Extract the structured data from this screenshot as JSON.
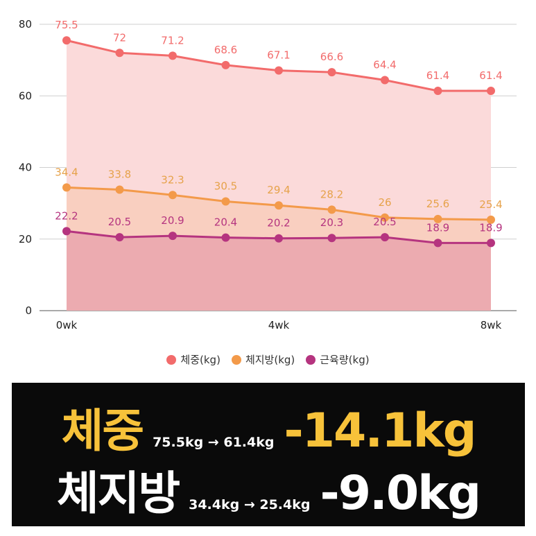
{
  "chart_data": {
    "type": "area",
    "x": [
      "0wk",
      "",
      "",
      "",
      "4wk",
      "",
      "",
      "",
      "8wk"
    ],
    "xlabel": "",
    "ylabel": "",
    "ylim": [
      0,
      80
    ],
    "yticks": [
      0,
      20,
      40,
      60,
      80
    ],
    "grid": true,
    "legend_position": "bottom",
    "series": [
      {
        "name": "체중(kg)",
        "color": "#f26b6b",
        "fill": "#fbdada",
        "label_color": "#f26b6b",
        "values": [
          75.5,
          72,
          71.2,
          68.6,
          67.1,
          66.6,
          64.4,
          61.4,
          61.4
        ],
        "labels": [
          "75.5",
          "72",
          "71.2",
          "68.6",
          "67.1",
          "66.6",
          "64.4",
          "61.4",
          "61.4"
        ]
      },
      {
        "name": "체지방(kg)",
        "color": "#f39a4a",
        "fill": "#f9cfc0",
        "label_color": "#e6a24a",
        "values": [
          34.4,
          33.8,
          32.3,
          30.5,
          29.4,
          28.2,
          26,
          25.6,
          25.4
        ],
        "labels": [
          "34.4",
          "33.8",
          "32.3",
          "30.5",
          "29.4",
          "28.2",
          "26",
          "25.6",
          "25.4"
        ]
      },
      {
        "name": "근육량(kg)",
        "color": "#b5347f",
        "fill": "#ecabb0",
        "label_color": "#b5347f",
        "values": [
          22.2,
          20.5,
          20.9,
          20.4,
          20.2,
          20.3,
          20.5,
          18.9,
          18.9
        ],
        "labels": [
          "22.2",
          "20.5",
          "20.9",
          "20.4",
          "20.2",
          "20.3",
          "20.5",
          "18.9",
          "18.9"
        ]
      }
    ]
  },
  "summary": {
    "row1": {
      "label": "체중",
      "range": "75.5kg → 61.4kg",
      "delta": "-14.1kg",
      "label_color": "#f7c23a"
    },
    "row2": {
      "label": "체지방",
      "range": "34.4kg → 25.4kg",
      "delta": "-9.0kg",
      "label_color": "#ffffff"
    }
  }
}
